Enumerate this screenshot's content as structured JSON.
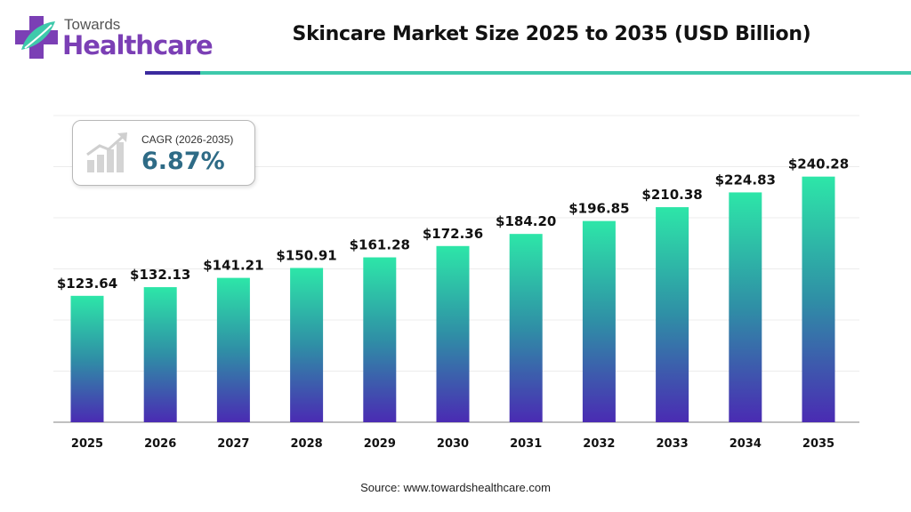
{
  "brand": {
    "top": "Towards",
    "main": "Healthcare",
    "logo_icon": "medical-cross-leaf-icon"
  },
  "colors": {
    "brand_purple": "#7b3fb5",
    "rule_dark": "#3b2a9e",
    "rule_light": "#3ec9ab",
    "bar_top": "#2de6a8",
    "bar_mid": "#2f8fa6",
    "bar_bottom": "#4a2bb3",
    "cagr_value": "#2e6b86"
  },
  "cagr": {
    "label": "CAGR (2026-2035)",
    "value": "6.87%",
    "icon": "growth-bar-chart-icon"
  },
  "source": "Source: www.towardshealthcare.com",
  "chart_data": {
    "type": "bar",
    "title": "Skincare Market Size 2025 to 2035 (USD Billion)",
    "xlabel": "",
    "ylabel": "",
    "categories": [
      "2025",
      "2026",
      "2027",
      "2028",
      "2029",
      "2030",
      "2031",
      "2032",
      "2033",
      "2034",
      "2035"
    ],
    "values": [
      123.64,
      132.13,
      141.21,
      150.91,
      161.28,
      172.36,
      184.2,
      196.85,
      210.38,
      224.83,
      240.28
    ],
    "value_labels": [
      "$123.64",
      "$132.13",
      "$141.21",
      "$150.91",
      "$161.28",
      "$172.36",
      "$184.20",
      "$196.85",
      "$210.38",
      "$224.83",
      "$240.28"
    ],
    "ylim": [
      0,
      300
    ],
    "grid": true,
    "legend": "none"
  }
}
